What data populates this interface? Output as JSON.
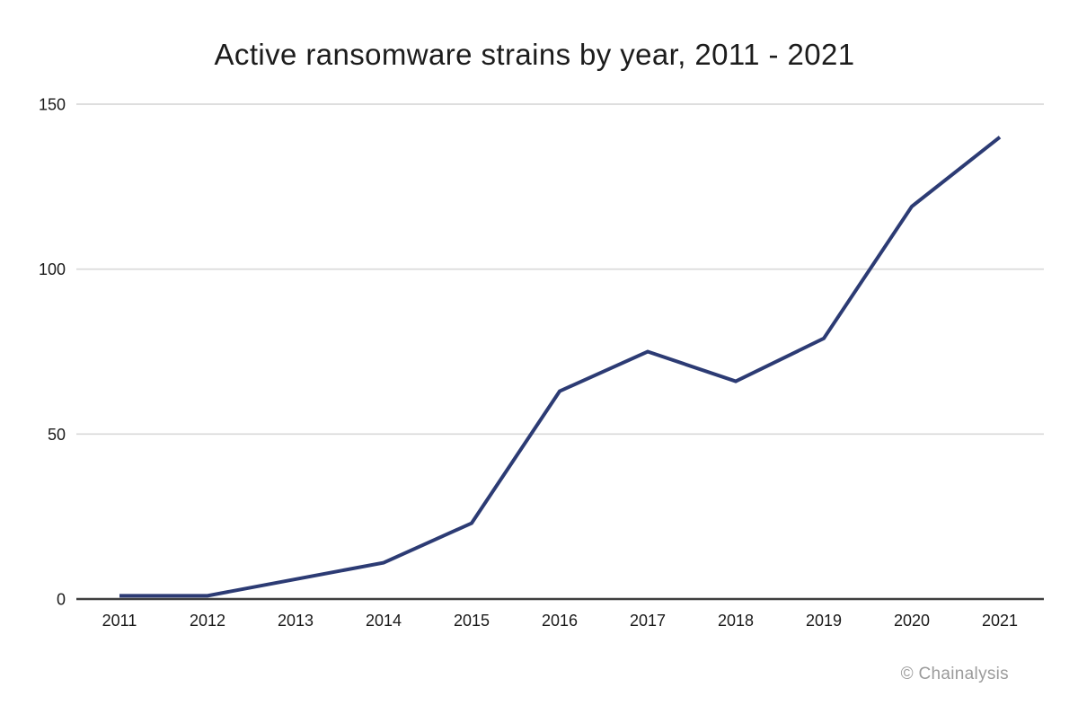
{
  "chart": {
    "title": "Active ransomware strains by year, 2011 - 2021",
    "attribution": "© Chainalysis"
  },
  "chart_data": {
    "type": "line",
    "title": "Active ransomware strains by year, 2011 - 2021",
    "categories": [
      "2011",
      "2012",
      "2013",
      "2014",
      "2015",
      "2016",
      "2017",
      "2018",
      "2019",
      "2020",
      "2021"
    ],
    "series": [
      {
        "name": "Active ransomware strains",
        "values": [
          1,
          1,
          6,
          11,
          23,
          63,
          75,
          66,
          79,
          119,
          140
        ]
      }
    ],
    "xlabel": "",
    "ylabel": "",
    "ylim": [
      0,
      150
    ],
    "yticks": [
      0,
      50,
      100,
      150
    ],
    "grid": true,
    "legend_position": "none",
    "colors": {
      "line": "#2c3b74",
      "grid": "#d9d9d9",
      "axis": "#3f3f3f",
      "tick_label": "#1a1a1a",
      "title": "#1c1c1c",
      "attribution": "#9b9b9b"
    }
  }
}
